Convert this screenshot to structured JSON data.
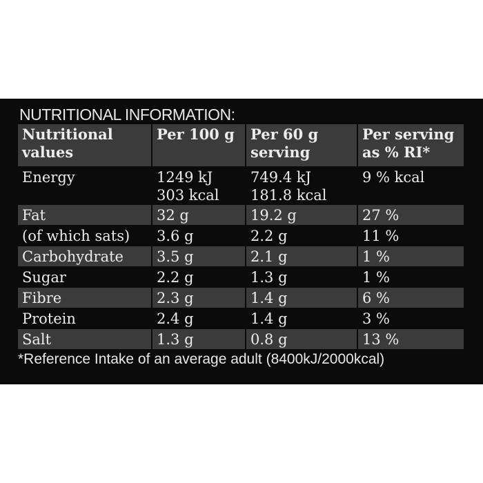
{
  "header": {
    "title": "NUTRITIONAL INFORMATION:"
  },
  "table": {
    "columns": [
      [
        "Nutritional",
        "values"
      ],
      [
        "Per 100 g"
      ],
      [
        "Per 60 g",
        "serving"
      ],
      [
        "Per serving",
        "as % RI*"
      ]
    ],
    "rows": [
      [
        [
          "Energy"
        ],
        [
          "1249 kJ",
          "303 kcal"
        ],
        [
          "749.4 kJ",
          "181.8 kcal"
        ],
        [
          "9 % kcal"
        ]
      ],
      [
        [
          "Fat"
        ],
        [
          "32 g"
        ],
        [
          "19.2 g"
        ],
        [
          "27 %"
        ]
      ],
      [
        [
          "(of which sats)"
        ],
        [
          "3.6 g"
        ],
        [
          "2.2 g"
        ],
        [
          "11 %"
        ]
      ],
      [
        [
          "Carbohydrate"
        ],
        [
          "3.5 g"
        ],
        [
          "2.1 g"
        ],
        [
          "1 %"
        ]
      ],
      [
        [
          "Sugar"
        ],
        [
          "2.2 g"
        ],
        [
          "1.3 g"
        ],
        [
          "1 %"
        ]
      ],
      [
        [
          "Fibre"
        ],
        [
          "2.3 g"
        ],
        [
          "1.4 g"
        ],
        [
          "6 %"
        ]
      ],
      [
        [
          "Protein"
        ],
        [
          "2.4 g"
        ],
        [
          "1.4 g"
        ],
        [
          "3 %"
        ]
      ],
      [
        [
          "Salt"
        ],
        [
          "1.3 g"
        ],
        [
          "0.8 g"
        ],
        [
          "13 %"
        ]
      ]
    ]
  },
  "footnote": "*Reference Intake of an average adult (8400kJ/2000kcal)"
}
